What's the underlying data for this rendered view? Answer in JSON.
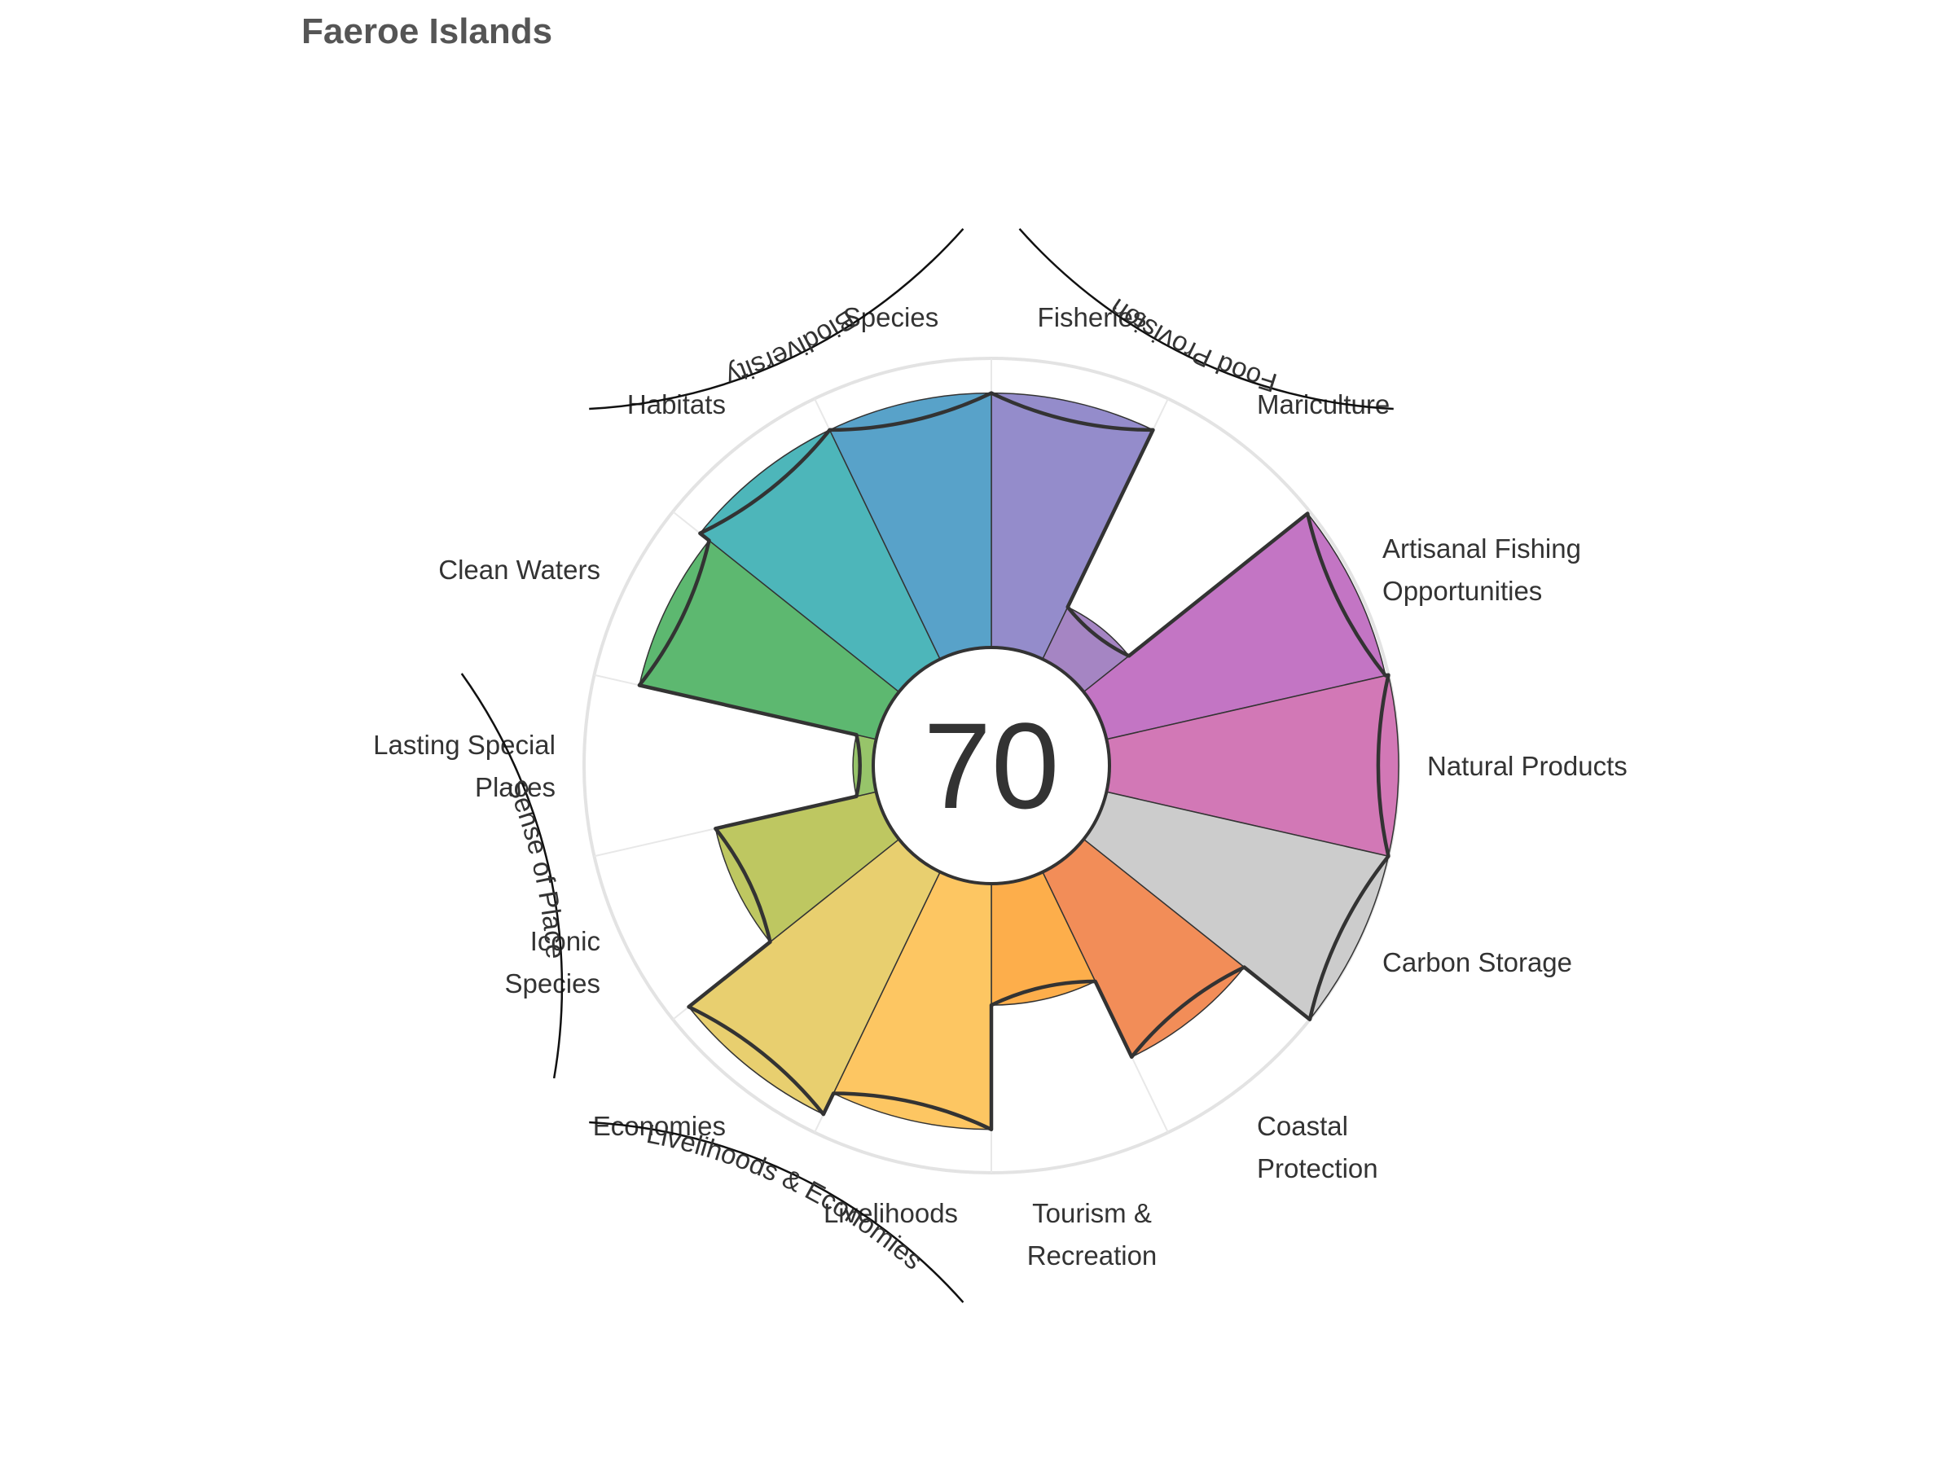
{
  "title": "Faeroe Islands",
  "chart_data": {
    "type": "polar-bar",
    "title": "Faeroe Islands",
    "center_score": "70",
    "max_value": 100,
    "goals": [
      {
        "name": "Fisheries",
        "lines": [
          "Fisheries"
        ],
        "value": 88,
        "color": "#948ccb"
      },
      {
        "name": "Mariculture",
        "lines": [
          "Mariculture"
        ],
        "value": 20,
        "color": "#a585c3"
      },
      {
        "name": "Artisanal Fishing Opportunities",
        "lines": [
          "Artisanal Fishing",
          "Opportunities"
        ],
        "value": 99,
        "color": "#c375c4"
      },
      {
        "name": "Natural Products",
        "lines": [
          "Natural Products"
        ],
        "value": 100,
        "color": "#d278b6"
      },
      {
        "name": "Carbon Storage",
        "lines": [
          "Carbon Storage"
        ],
        "value": 100,
        "color": "#cccccc"
      },
      {
        "name": "Coastal Protection",
        "lines": [
          "Coastal",
          "Protection"
        ],
        "value": 71,
        "color": "#f28d58"
      },
      {
        "name": "Tourism & Recreation",
        "lines": [
          "Tourism &",
          "Recreation"
        ],
        "value": 42,
        "color": "#fdae4b"
      },
      {
        "name": "Livelihoods",
        "lines": [
          "Livelihoods"
        ],
        "value": 85,
        "color": "#fdc662"
      },
      {
        "name": "Economies",
        "lines": [
          "Economies"
        ],
        "value": 93,
        "color": "#e8cf6f"
      },
      {
        "name": "Iconic Species",
        "lines": [
          "Iconic",
          "Species"
        ],
        "value": 57,
        "color": "#bec761"
      },
      {
        "name": "Lasting Special Places",
        "lines": [
          "Lasting Special",
          "Places"
        ],
        "value": 7,
        "color": "#97c46a"
      },
      {
        "name": "Clean Waters",
        "lines": [
          "Clean Waters"
        ],
        "value": 84,
        "color": "#5db870"
      },
      {
        "name": "Habitats",
        "lines": [
          "Habitats"
        ],
        "value": 88,
        "color": "#4db6ba"
      },
      {
        "name": "Species",
        "lines": [
          "Species"
        ],
        "value": 88,
        "color": "#58a2c9"
      }
    ],
    "groups": [
      {
        "name": "Food Provision"
      },
      {
        "name": "Biodiversity"
      },
      {
        "name": "Sense of Place"
      },
      {
        "name": "Livelihoods & Economies"
      }
    ]
  }
}
